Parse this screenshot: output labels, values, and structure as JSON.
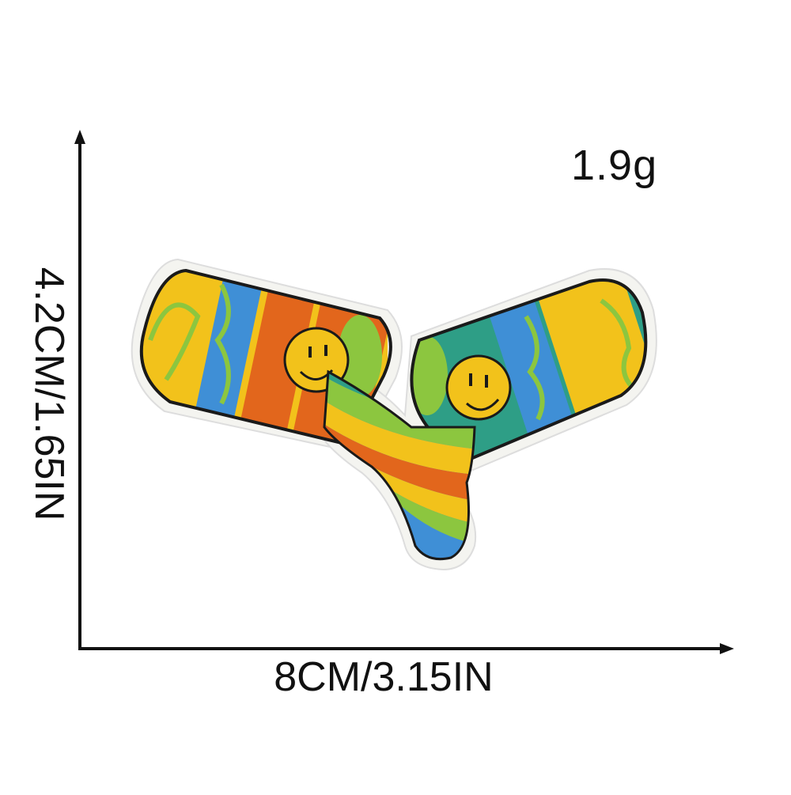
{
  "labels": {
    "weight": "1.9g",
    "width": "8CM/3.15IN",
    "height": "4.2CM/1.65IN"
  },
  "product": {
    "subject": "embroidered-pill-patch-icon",
    "colors": {
      "outline": "#1a1a1a",
      "yellow": "#f2c21b",
      "blue": "#3f8fd6",
      "orange": "#e2661c",
      "green": "#8cc63f",
      "teal": "#2e9e86",
      "border": "#f4f4f0"
    }
  }
}
